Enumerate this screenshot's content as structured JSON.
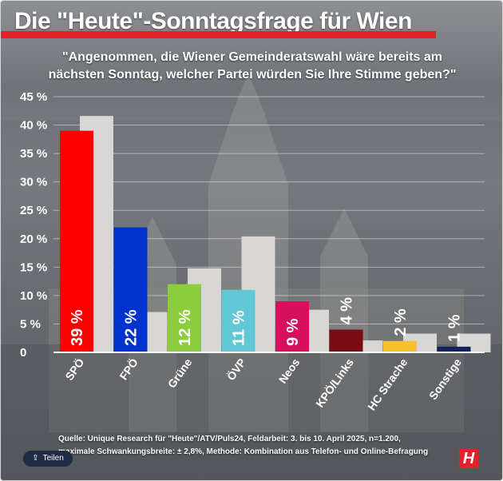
{
  "header": {
    "title": "Die \"Heute\"-Sonntagsfrage für Wien",
    "subtitle_line1": "\"Angenommen, die Wiener Gemeinderatswahl wäre bereits am",
    "subtitle_line2": "nächsten Sonntag, welcher Partei würden Sie Ihre Stimme geben?\""
  },
  "footer": {
    "source_line1": "Quelle: Unique Research für \"Heute\"/ATV/Puls24, Feldarbeit: 3. bis 10. April  2025, n=1.200,",
    "source_line2": "maximale Schwankungsbreite: ± 2,8%, Methode: Kombination aus Telefon- und Online-Befragung",
    "share_label": "Teilen",
    "share_icon": "share-icon",
    "logo_text": "H"
  },
  "colors": {
    "accent": "#e5202a",
    "reference_bar": "#d9d6d6"
  },
  "chart_data": {
    "type": "bar",
    "ylim": [
      0,
      45
    ],
    "yticks": [
      "0",
      "5 %",
      "10 %",
      "15 %",
      "20 %",
      "25 %",
      "30 %",
      "35 %",
      "40 %",
      "45 %"
    ],
    "categories": [
      "SPÖ",
      "FPÖ",
      "Grüne",
      "ÖVP",
      "Neos",
      "KPÖ/Links",
      "HC Strache",
      "Sonstige"
    ],
    "series": [
      {
        "values": [
          39,
          22,
          12,
          11,
          9,
          4,
          2,
          1
        ],
        "labels": [
          "39 %",
          "22 %",
          "12 %",
          "11 %",
          "9 %",
          "4 %",
          "2 %",
          "1 %"
        ],
        "colors": [
          "#ff0000",
          "#0033cc",
          "#8ccd3c",
          "#62c8d6",
          "#d6105e",
          "#7a0a14",
          "#f6c12b",
          "#15205e"
        ]
      },
      {
        "values": [
          41.6,
          7.1,
          14.8,
          20.4,
          7.5,
          2.1,
          3.3,
          3.3
        ],
        "colors": [
          "#d9d6d6",
          "#d9d6d6",
          "#d9d6d6",
          "#d9d6d6",
          "#d9d6d6",
          "#d9d6d6",
          "#d9d6d6",
          "#d9d6d6"
        ]
      }
    ]
  }
}
